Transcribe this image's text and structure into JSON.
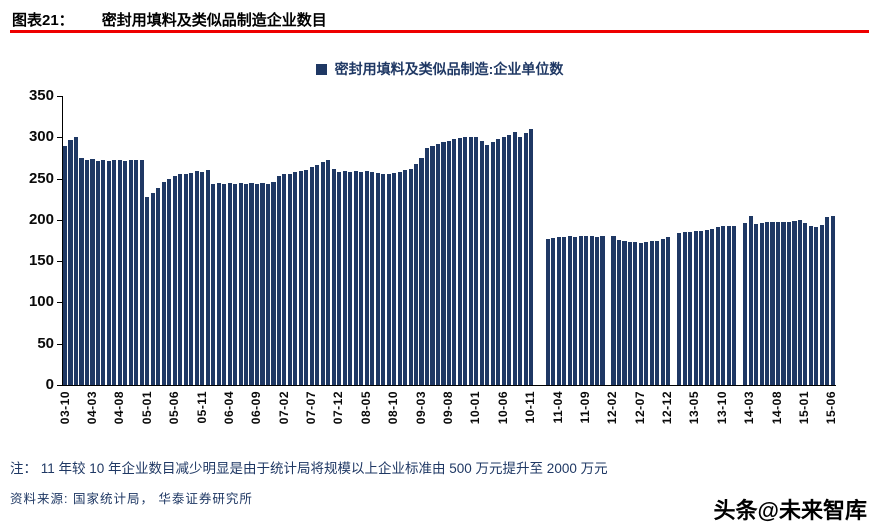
{
  "header": {
    "figure_label": "图表21：",
    "title": "密封用填料及类似品制造企业数目"
  },
  "chart_data": {
    "type": "bar",
    "legend": "密封用填料及类似品制造:企业单位数",
    "x_start": "2003-10",
    "x_end": "2015-06",
    "frequency": "monthly",
    "ylim": [
      0,
      350
    ],
    "yticks": [
      0,
      50,
      100,
      150,
      200,
      250,
      300,
      350
    ],
    "x_tick_every": 5,
    "x_tick_labels": [
      "03-10",
      "04-03",
      "04-08",
      "05-01",
      "05-06",
      "05-11",
      "06-04",
      "06-09",
      "07-02",
      "07-07",
      "07-12",
      "08-05",
      "08-10",
      "09-03",
      "09-08",
      "10-01",
      "10-06",
      "10-11",
      "11-04",
      "11-09",
      "12-02",
      "12-07",
      "12-12",
      "13-05",
      "13-10",
      "14-03",
      "14-08",
      "15-01",
      "15-06"
    ],
    "values": [
      290,
      297,
      300,
      275,
      272,
      274,
      271,
      272,
      271,
      272,
      272,
      271,
      272,
      272,
      273,
      228,
      232,
      238,
      246,
      250,
      253,
      255,
      256,
      257,
      259,
      258,
      260,
      244,
      245,
      244,
      245,
      244,
      245,
      244,
      245,
      244,
      245,
      244,
      246,
      253,
      255,
      256,
      258,
      259,
      261,
      264,
      267,
      270,
      273,
      262,
      258,
      259,
      258,
      259,
      258,
      259,
      258,
      257,
      256,
      255,
      257,
      258,
      260,
      262,
      268,
      275,
      287,
      290,
      292,
      294,
      296,
      298,
      299,
      300,
      300,
      300,
      296,
      291,
      294,
      298,
      300,
      303,
      306,
      300,
      305,
      310,
      null,
      null,
      177,
      178,
      179,
      179,
      180,
      179,
      180,
      180,
      180,
      179,
      181,
      null,
      181,
      176,
      174,
      173,
      173,
      172,
      173,
      174,
      175,
      177,
      179,
      null,
      184,
      185,
      185,
      186,
      187,
      188,
      189,
      191,
      192,
      192,
      193,
      null,
      196,
      205,
      195,
      196,
      197,
      197,
      198,
      198,
      198,
      199,
      200,
      196,
      192,
      191,
      194,
      203,
      205
    ],
    "grid": "off",
    "legend_position": "top-center"
  },
  "colors": {
    "bar": "#1f3864",
    "accent_rule": "#ee0000",
    "text_navy": "#1f3864"
  },
  "note": "注： 11 年较 10 年企业数目减少明显是由于统计局将规模以上企业标准由 500 万元提升至 2000 万元",
  "source": "资料来源: 国家统计局， 华泰证券研究所",
  "watermark": "头条@未来智库"
}
